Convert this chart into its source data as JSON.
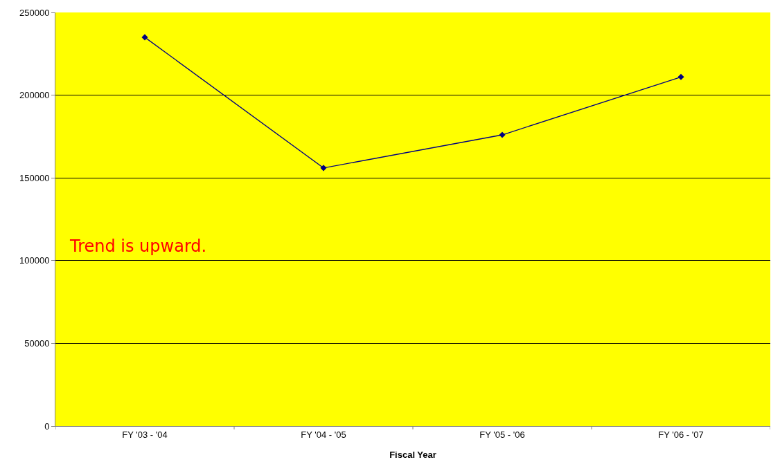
{
  "chart_data": {
    "type": "line",
    "xlabel": "Fiscal Year",
    "categories": [
      "FY '03 - '04",
      "FY '04 - '05",
      "FY '05 - '06",
      "FY '06 - '07"
    ],
    "series": [
      {
        "color": "#000080",
        "values": [
          235000,
          156000,
          176000,
          211000
        ]
      }
    ],
    "ylim": [
      0,
      250000
    ],
    "yticks": [
      0,
      50000,
      100000,
      150000,
      200000,
      250000
    ],
    "grid": "y",
    "marker": "diamond",
    "line_style": "solid",
    "annotations": [
      "Trend is upward."
    ]
  }
}
